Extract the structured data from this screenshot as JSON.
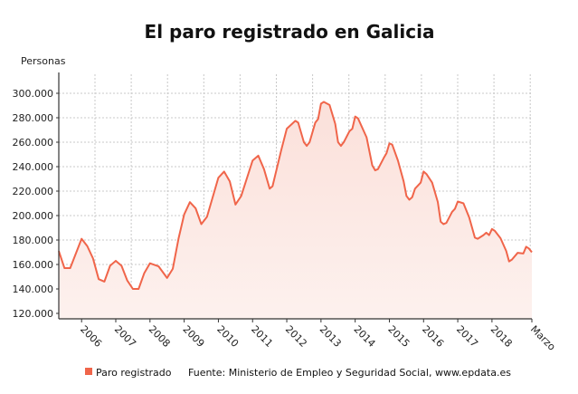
{
  "chart_data": {
    "type": "area",
    "title": "El paro registrado en Galicia",
    "ylabel": "Personas",
    "xlabel": "",
    "ylim": [
      117000,
      315000
    ],
    "xlim": [
      "2005-05",
      "2019-03"
    ],
    "grid": true,
    "legend_position": "bottom",
    "y_ticks": [
      {
        "value": 120000,
        "label": "120.000"
      },
      {
        "value": 140000,
        "label": "140.000"
      },
      {
        "value": 160000,
        "label": "160.000"
      },
      {
        "value": 180000,
        "label": "180.000"
      },
      {
        "value": 200000,
        "label": "200.000"
      },
      {
        "value": 220000,
        "label": "220.000"
      },
      {
        "value": 240000,
        "label": "240.000"
      },
      {
        "value": 260000,
        "label": "260.000"
      },
      {
        "value": 280000,
        "label": "280.000"
      },
      {
        "value": 300000,
        "label": "300.000"
      }
    ],
    "x_ticks": [
      {
        "date": "2006-01",
        "label": "2006"
      },
      {
        "date": "2007-01",
        "label": "2007"
      },
      {
        "date": "2008-01",
        "label": "2008"
      },
      {
        "date": "2009-01",
        "label": "2009"
      },
      {
        "date": "2010-01",
        "label": "2010"
      },
      {
        "date": "2011-01",
        "label": "2011"
      },
      {
        "date": "2012-01",
        "label": "2012"
      },
      {
        "date": "2013-01",
        "label": "2013"
      },
      {
        "date": "2014-01",
        "label": "2014"
      },
      {
        "date": "2015-01",
        "label": "2015"
      },
      {
        "date": "2016-01",
        "label": "2016"
      },
      {
        "date": "2017-01",
        "label": "2017"
      },
      {
        "date": "2018-01",
        "label": "2018"
      },
      {
        "date": "2019-03",
        "label": "Marzo"
      }
    ],
    "series": [
      {
        "name": "Paro registrado",
        "color": "#f0654a",
        "points": [
          [
            "2005-05",
            171000
          ],
          [
            "2005-07",
            157000
          ],
          [
            "2005-09",
            157000
          ],
          [
            "2006-01",
            181000
          ],
          [
            "2006-03",
            175000
          ],
          [
            "2006-05",
            165000
          ],
          [
            "2006-07",
            148000
          ],
          [
            "2006-09",
            146000
          ],
          [
            "2006-11",
            159000
          ],
          [
            "2007-01",
            163000
          ],
          [
            "2007-03",
            159000
          ],
          [
            "2007-05",
            147000
          ],
          [
            "2007-07",
            140000
          ],
          [
            "2007-09",
            140000
          ],
          [
            "2007-11",
            153000
          ],
          [
            "2008-01",
            161000
          ],
          [
            "2008-04",
            158500
          ],
          [
            "2008-07",
            149000
          ],
          [
            "2008-09",
            156500
          ],
          [
            "2008-11",
            181000
          ],
          [
            "2009-01",
            201000
          ],
          [
            "2009-03",
            211000
          ],
          [
            "2009-05",
            206000
          ],
          [
            "2009-07",
            193000
          ],
          [
            "2009-09",
            199000
          ],
          [
            "2010-01",
            231000
          ],
          [
            "2010-03",
            236000
          ],
          [
            "2010-05",
            228000
          ],
          [
            "2010-07",
            209000
          ],
          [
            "2010-09",
            216000
          ],
          [
            "2011-01",
            245000
          ],
          [
            "2011-03",
            249000
          ],
          [
            "2011-05",
            238000
          ],
          [
            "2011-07",
            222000
          ],
          [
            "2011-08",
            224000
          ],
          [
            "2011-11",
            253000
          ],
          [
            "2012-01",
            271000
          ],
          [
            "2012-04",
            277500
          ],
          [
            "2012-05",
            276000
          ],
          [
            "2012-07",
            260000
          ],
          [
            "2012-08",
            257000
          ],
          [
            "2012-09",
            260000
          ],
          [
            "2012-11",
            276000
          ],
          [
            "2012-12",
            279000
          ],
          [
            "2013-01",
            291500
          ],
          [
            "2013-02",
            293000
          ],
          [
            "2013-04",
            290500
          ],
          [
            "2013-06",
            275000
          ],
          [
            "2013-07",
            260000
          ],
          [
            "2013-08",
            257000
          ],
          [
            "2013-09",
            260000
          ],
          [
            "2013-11",
            269000
          ],
          [
            "2013-12",
            271000
          ],
          [
            "2014-01",
            281000
          ],
          [
            "2014-02",
            279500
          ],
          [
            "2014-05",
            264000
          ],
          [
            "2014-07",
            241000
          ],
          [
            "2014-08",
            237000
          ],
          [
            "2014-09",
            238000
          ],
          [
            "2014-11",
            247000
          ],
          [
            "2014-12",
            251000
          ],
          [
            "2015-01",
            259000
          ],
          [
            "2015-02",
            258000
          ],
          [
            "2015-04",
            245000
          ],
          [
            "2015-06",
            228000
          ],
          [
            "2015-07",
            216000
          ],
          [
            "2015-08",
            213000
          ],
          [
            "2015-09",
            215000
          ],
          [
            "2015-10",
            222000
          ],
          [
            "2015-12",
            227000
          ],
          [
            "2016-01",
            236000
          ],
          [
            "2016-02",
            234000
          ],
          [
            "2016-04",
            227000
          ],
          [
            "2016-06",
            211000
          ],
          [
            "2016-07",
            195000
          ],
          [
            "2016-08",
            193000
          ],
          [
            "2016-09",
            194000
          ],
          [
            "2016-11",
            203000
          ],
          [
            "2016-12",
            205500
          ],
          [
            "2017-01",
            211500
          ],
          [
            "2017-03",
            210000
          ],
          [
            "2017-05",
            198500
          ],
          [
            "2017-07",
            182000
          ],
          [
            "2017-08",
            181000
          ],
          [
            "2017-10",
            184000
          ],
          [
            "2017-11",
            186000
          ],
          [
            "2017-12",
            184000
          ],
          [
            "2018-01",
            189000
          ],
          [
            "2018-02",
            187500
          ],
          [
            "2018-04",
            181500
          ],
          [
            "2018-06",
            171000
          ],
          [
            "2018-07",
            162500
          ],
          [
            "2018-08",
            164000
          ],
          [
            "2018-10",
            169500
          ],
          [
            "2018-12",
            169000
          ],
          [
            "2019-01",
            174500
          ],
          [
            "2019-02",
            173000
          ],
          [
            "2019-03",
            170000
          ]
        ]
      }
    ],
    "source": "Fuente: Ministerio de Empleo y Seguridad Social, www.epdata.es"
  }
}
